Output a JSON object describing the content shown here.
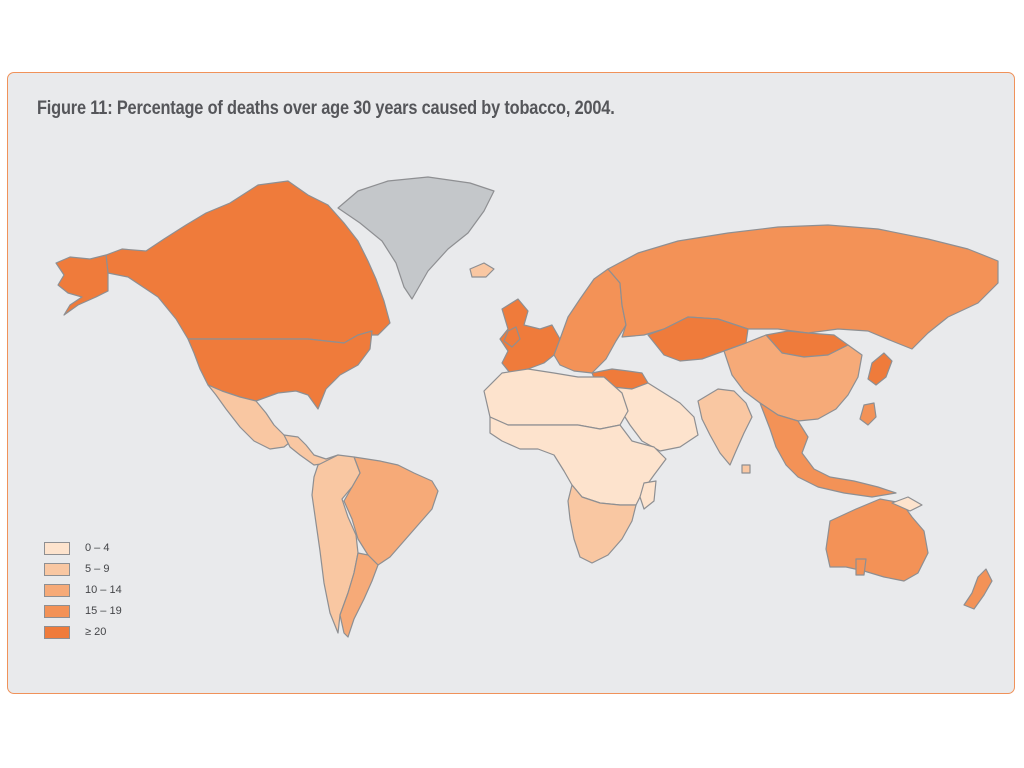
{
  "figure": {
    "title": "Figure 11: Percentage of deaths over age 30 years caused by tobacco, 2004."
  },
  "colors": {
    "background": "#e9eaec",
    "frame_border": "#f0925a",
    "border_lines": "#8e8f92",
    "no_data": "#c4c7ca"
  },
  "legend": {
    "items": [
      {
        "label": "0 – 4",
        "color": "#fde3cd"
      },
      {
        "label": "5 – 9",
        "color": "#f9c7a2"
      },
      {
        "label": "10 – 14",
        "color": "#f6aa78"
      },
      {
        "label": "15 – 19",
        "color": "#f39257"
      },
      {
        "label": "≥ 20",
        "color": "#ef7b3b"
      }
    ]
  },
  "regions": [
    {
      "name": "Canada",
      "class": "≥ 20"
    },
    {
      "name": "United States",
      "class": "≥ 20"
    },
    {
      "name": "Alaska",
      "class": "≥ 20"
    },
    {
      "name": "Greenland",
      "class": "no data"
    },
    {
      "name": "Mexico",
      "class": "5 – 9"
    },
    {
      "name": "Central America",
      "class": "5 – 9"
    },
    {
      "name": "Brazil",
      "class": "10 – 14"
    },
    {
      "name": "Andean South America",
      "class": "5 – 9"
    },
    {
      "name": "Southern Cone",
      "class": "10 – 14"
    },
    {
      "name": "Western Europe",
      "class": "≥ 20"
    },
    {
      "name": "Eastern Europe",
      "class": "15 – 19"
    },
    {
      "name": "Russia",
      "class": "15 – 19"
    },
    {
      "name": "Kazakhstan",
      "class": "≥ 20"
    },
    {
      "name": "Mongolia",
      "class": "≥ 20"
    },
    {
      "name": "China",
      "class": "10 – 14"
    },
    {
      "name": "Japan",
      "class": "≥ 20"
    },
    {
      "name": "Turkey",
      "class": "≥ 20"
    },
    {
      "name": "Middle East",
      "class": "0 – 4"
    },
    {
      "name": "India",
      "class": "5 – 9"
    },
    {
      "name": "Southeast Asia",
      "class": "15 – 19"
    },
    {
      "name": "North Africa",
      "class": "0 – 4"
    },
    {
      "name": "Sub-Saharan Africa",
      "class": "0 – 4"
    },
    {
      "name": "Southern Africa",
      "class": "5 – 9"
    },
    {
      "name": "Australia",
      "class": "15 – 19"
    },
    {
      "name": "New Zealand",
      "class": "15 – 19"
    }
  ]
}
